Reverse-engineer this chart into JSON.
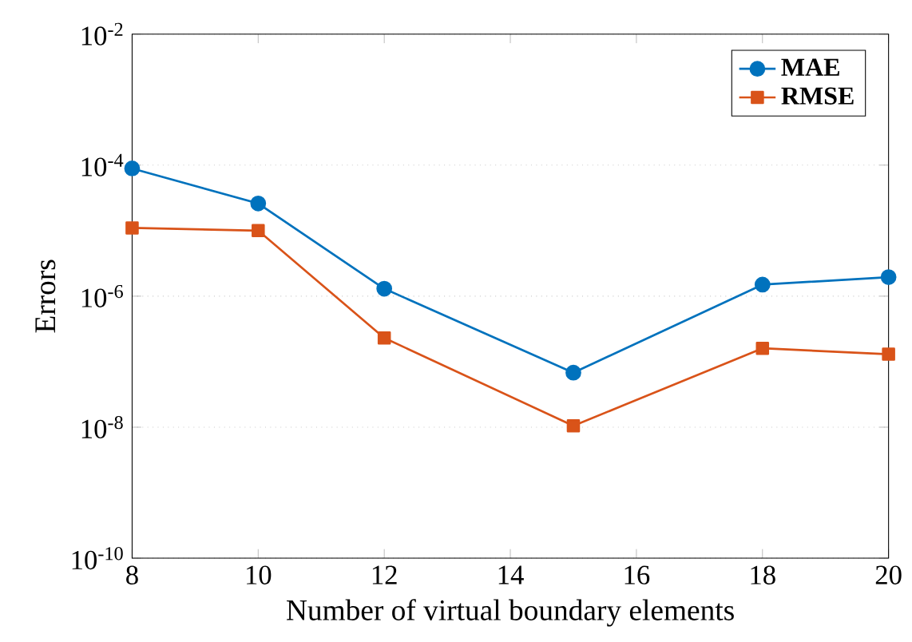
{
  "chart_data": {
    "type": "line",
    "xlabel": "Number of virtual boundary elements",
    "ylabel": "Errors",
    "x": [
      8,
      10,
      12,
      15,
      18,
      20
    ],
    "series": [
      {
        "name": "MAE",
        "color": "#0072bd",
        "marker": "circle",
        "values": [
          8.9e-05,
          2.6e-05,
          1.3e-06,
          6.8e-08,
          1.5e-06,
          1.95e-06
        ]
      },
      {
        "name": "RMSE",
        "color": "#d95319",
        "marker": "square",
        "values": [
          1.1e-05,
          1e-05,
          2.3e-07,
          1.05e-08,
          1.6e-07,
          1.3e-07
        ]
      }
    ],
    "log": "y",
    "xlim": [
      8,
      20
    ],
    "ylim": [
      1e-10,
      0.01
    ],
    "xticks": [
      8,
      10,
      12,
      14,
      16,
      18,
      20
    ],
    "yticks": [
      {
        "value": 1e-10,
        "label": "10$^{-10}$"
      },
      {
        "value": 1e-08,
        "label": "10$^{-8}$"
      },
      {
        "value": 1e-06,
        "label": "10$^{-6}$"
      },
      {
        "value": 0.0001,
        "label": "10$^{-4}$"
      },
      {
        "value": 0.01,
        "label": "10$^{-2}$"
      }
    ],
    "grid": "y",
    "legend": "top right",
    "line_style": "solid"
  }
}
